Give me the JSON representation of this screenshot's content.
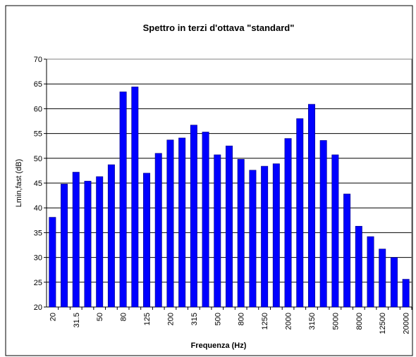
{
  "chart_data": {
    "type": "bar",
    "title": "Spettro in terzi d'ottava \"standard\"",
    "x_label": "Frequenza (Hz)",
    "y_label": "Lmin,fast (dB)",
    "categories": [
      "20",
      null,
      "31.5",
      null,
      "50",
      null,
      "80",
      null,
      "125",
      null,
      "200",
      null,
      "315",
      null,
      "500",
      null,
      "800",
      null,
      "1250",
      null,
      "2000",
      null,
      "3150",
      null,
      "5000",
      null,
      "8000",
      null,
      "12500",
      null,
      "20000"
    ],
    "values": [
      38.1,
      44.8,
      47.2,
      45.4,
      46.3,
      48.7,
      63.4,
      64.4,
      47.0,
      51.0,
      53.7,
      54.1,
      56.7,
      55.3,
      50.7,
      52.5,
      49.8,
      47.6,
      48.4,
      48.9,
      54.0,
      58.0,
      60.9,
      53.6,
      50.7,
      42.8,
      36.3,
      34.2,
      31.7,
      30.0,
      25.6
    ],
    "color": "#0000ff",
    "ylim": [
      20,
      70
    ],
    "yticks": [
      20,
      25,
      30,
      35,
      40,
      45,
      50,
      55,
      60,
      65,
      70
    ],
    "grid": true
  }
}
